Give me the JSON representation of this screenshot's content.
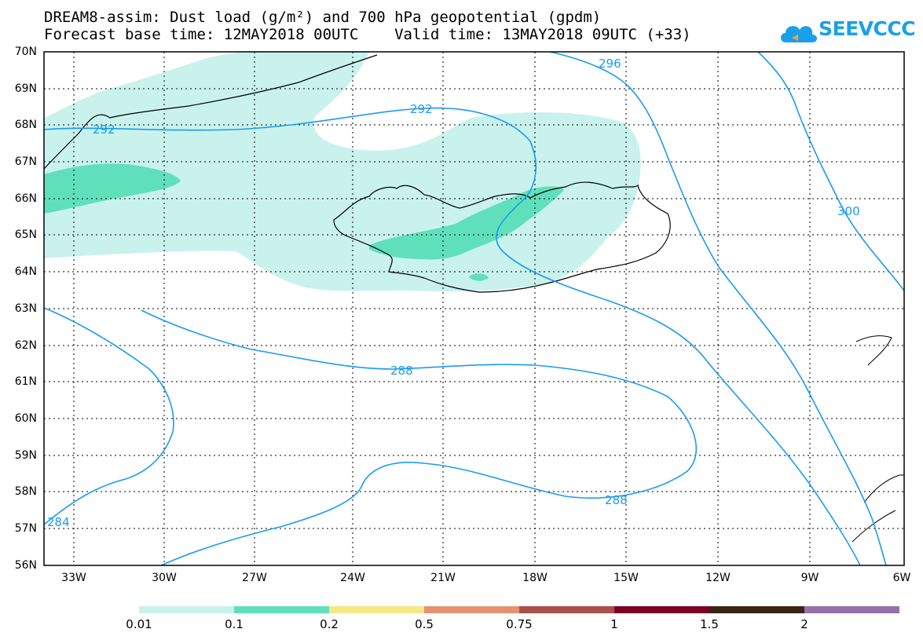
{
  "header": {
    "line1": "DREAM8-assim: Dust load (g/m²) and 700 hPa geopotential (gpdm)",
    "line2": "Forecast base time: 12MAY2018 00UTC    Valid time: 13MAY2018 09UTC (+33)"
  },
  "logo": {
    "text": "SEEVCCC",
    "icon": "cloud-icon",
    "color": "#1aa0e8"
  },
  "axes": {
    "lat_labels": [
      "70N",
      "69N",
      "68N",
      "67N",
      "66N",
      "65N",
      "64N",
      "63N",
      "62N",
      "61N",
      "60N",
      "59N",
      "58N",
      "57N",
      "56N"
    ],
    "lon_labels": [
      "33W",
      "30W",
      "27W",
      "24W",
      "21W",
      "18W",
      "15W",
      "12W",
      "9W",
      "6W"
    ]
  },
  "contour_labels": [
    {
      "text": "296"
    },
    {
      "text": "292"
    },
    {
      "text": "292"
    },
    {
      "text": "300"
    },
    {
      "text": "288"
    },
    {
      "text": "288"
    },
    {
      "text": "284"
    }
  ],
  "colorbar": {
    "labels": [
      "0.01",
      "0.1",
      "0.2",
      "0.5",
      "0.75",
      "1",
      "1.5",
      "2"
    ],
    "colors": [
      "#c9f2ec",
      "#5fe0bb",
      "#f4e887",
      "#e49271",
      "#a9504a",
      "#7b0025",
      "#3a2412",
      "#9570a9"
    ]
  },
  "styles": {
    "contour_color": "#1a9cf0",
    "coast_color": "#000000"
  }
}
